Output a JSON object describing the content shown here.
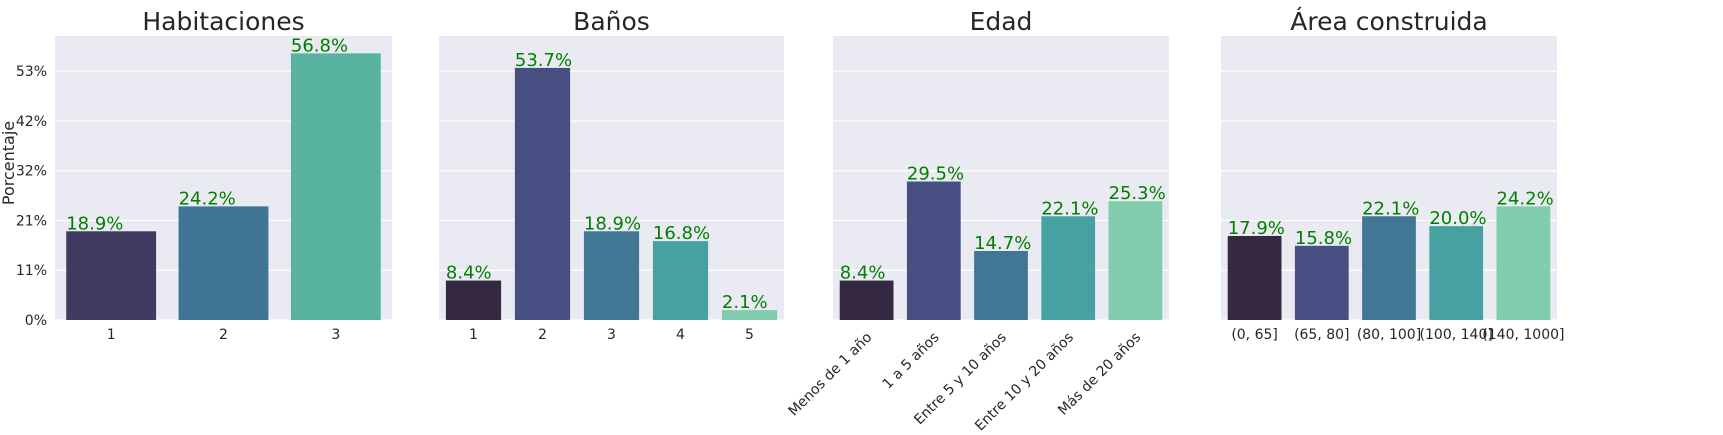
{
  "figure": {
    "ylabel": "Porcentaje"
  },
  "chart_data": [
    {
      "type": "bar",
      "title": "Habitaciones",
      "categories": [
        "1",
        "2",
        "3"
      ],
      "values": [
        18.9,
        24.2,
        56.8
      ],
      "value_labels": [
        "18.9%",
        "24.2%",
        "56.8%"
      ],
      "colors": [
        "#403b61",
        "#3e7496",
        "#58b4a0"
      ],
      "ylabel": "Porcentaje",
      "yticks": [
        "0%",
        "11%",
        "21%",
        "32%",
        "42%",
        "53%"
      ],
      "ylim": [
        0,
        60.5
      ],
      "grid": true
    },
    {
      "type": "bar",
      "title": "Baños",
      "categories": [
        "1",
        "2",
        "3",
        "4",
        "5"
      ],
      "values": [
        8.4,
        53.7,
        18.9,
        16.8,
        2.1
      ],
      "value_labels": [
        "8.4%",
        "53.7%",
        "18.9%",
        "16.8%",
        "2.1%"
      ],
      "colors": [
        "#342843",
        "#474f82",
        "#417795",
        "#46a1a0",
        "#80ccac"
      ],
      "ylim": [
        0,
        60.5
      ],
      "grid": true
    },
    {
      "type": "bar",
      "title": "Edad",
      "categories": [
        "Menos de 1 año",
        "1 a 5 años",
        "Entre 5 y 10 años",
        "Entre 10 y 20 años",
        "Más de 20 años"
      ],
      "values": [
        8.4,
        29.5,
        14.7,
        22.1,
        25.3
      ],
      "value_labels": [
        "8.4%",
        "29.5%",
        "14.7%",
        "22.1%",
        "25.3%"
      ],
      "colors": [
        "#342843",
        "#474f82",
        "#417795",
        "#46a1a0",
        "#80ccac"
      ],
      "ylim": [
        0,
        60.5
      ],
      "grid": true
    },
    {
      "type": "bar",
      "title": "Área construida",
      "categories": [
        "(0, 65]",
        "(65, 80]",
        "(80, 100]",
        "(100, 140]",
        "(140, 1000]"
      ],
      "values": [
        17.9,
        15.8,
        22.1,
        20.0,
        24.2
      ],
      "value_labels": [
        "17.9%",
        "15.8%",
        "22.1%",
        "20.0%",
        "24.2%"
      ],
      "colors": [
        "#342843",
        "#474f82",
        "#417795",
        "#46a1a0",
        "#80ccac"
      ],
      "ylim": [
        0,
        60.5
      ],
      "grid": true
    }
  ]
}
